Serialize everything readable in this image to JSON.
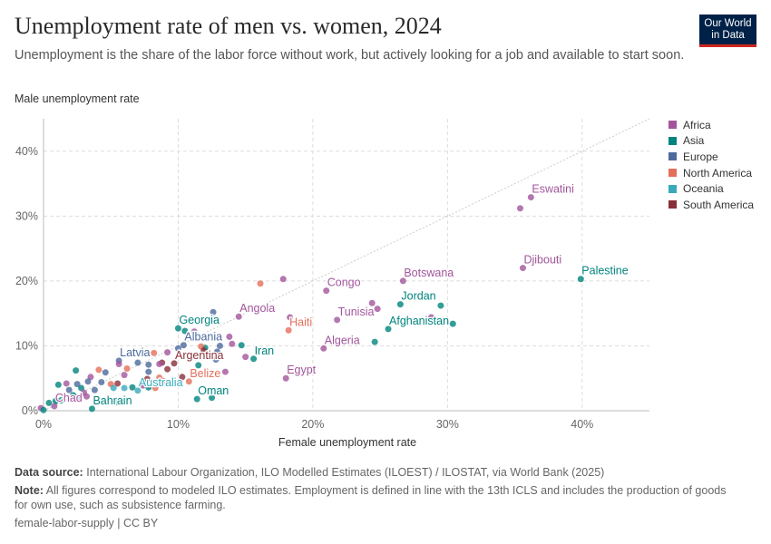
{
  "header": {
    "title": "Unemployment rate of men vs. women, 2024",
    "subtitle": "Unemployment is the share of the labor force without work, but actively looking for a job and available to start soon.",
    "logo": "Our World in Data"
  },
  "footer": {
    "source_label": "Data source:",
    "source": "International Labour Organization, ILO Modelled Estimates (ILOEST) / ILOSTAT, via World Bank (2025)",
    "note_label": "Note:",
    "note": "All figures correspond to modeled ILO estimates. Employment is defined in line with the 13th ICLS and includes the production of goods for own use, such as subsistence farming.",
    "license": "female-labor-supply | CC BY"
  },
  "colors": {
    "Africa": "#a2559c",
    "Asia": "#00847e",
    "Europe": "#4c6a9c",
    "North America": "#e56e5a",
    "Oceania": "#38aaba",
    "South America": "#883039"
  },
  "chart_data": {
    "type": "scatter",
    "xlabel": "Female unemployment rate",
    "ylabel": "Male unemployment rate",
    "xlim": [
      0,
      45
    ],
    "ylim": [
      0,
      45
    ],
    "xticks": [
      "0%",
      "10%",
      "20%",
      "30%",
      "40%"
    ],
    "yticks": [
      "0%",
      "10%",
      "20%",
      "30%",
      "40%"
    ],
    "grid": true,
    "reference_line": "y = x",
    "legend": {
      "position": "right",
      "entries": [
        "Africa",
        "Asia",
        "Europe",
        "North America",
        "Oceania",
        "South America"
      ]
    },
    "points": [
      {
        "entity": "Eswatini",
        "region": "Africa",
        "x": 36.2,
        "y": 32.9
      },
      {
        "region": "Africa",
        "x": 35.4,
        "y": 31.2
      },
      {
        "entity": "Djibouti",
        "region": "Africa",
        "x": 35.6,
        "y": 22.0
      },
      {
        "entity": "Palestine",
        "region": "Asia",
        "x": 39.9,
        "y": 20.3
      },
      {
        "entity": "Botswana",
        "region": "Africa",
        "x": 26.7,
        "y": 20.0
      },
      {
        "entity": "Congo",
        "region": "Africa",
        "x": 21.0,
        "y": 18.5
      },
      {
        "entity": "Jordan",
        "region": "Asia",
        "x": 26.5,
        "y": 16.4
      },
      {
        "region": "Asia",
        "x": 29.5,
        "y": 16.2
      },
      {
        "entity": "Tunisia",
        "region": "Africa",
        "x": 21.8,
        "y": 14.0
      },
      {
        "region": "Africa",
        "x": 24.4,
        "y": 16.6
      },
      {
        "region": "Africa",
        "x": 24.8,
        "y": 15.7
      },
      {
        "region": "Africa",
        "x": 28.8,
        "y": 14.4
      },
      {
        "entity": "Afghanistan",
        "region": "Asia",
        "x": 25.6,
        "y": 12.6
      },
      {
        "region": "Asia",
        "x": 30.4,
        "y": 13.4
      },
      {
        "entity": "Algeria",
        "region": "Africa",
        "x": 20.8,
        "y": 9.6
      },
      {
        "region": "Asia",
        "x": 24.6,
        "y": 10.6
      },
      {
        "entity": "Haiti",
        "region": "North America",
        "x": 18.2,
        "y": 12.4
      },
      {
        "region": "Africa",
        "x": 18.3,
        "y": 14.4
      },
      {
        "entity": "Egypt",
        "region": "Africa",
        "x": 18.0,
        "y": 5.0
      },
      {
        "entity": "Angola",
        "region": "Africa",
        "x": 14.5,
        "y": 14.5
      },
      {
        "region": "North America",
        "x": 16.1,
        "y": 19.6
      },
      {
        "region": "Africa",
        "x": 17.8,
        "y": 20.3
      },
      {
        "entity": "Iran",
        "region": "Asia",
        "x": 15.6,
        "y": 8.0
      },
      {
        "region": "Asia",
        "x": 14.7,
        "y": 10.1
      },
      {
        "region": "Africa",
        "x": 15.0,
        "y": 8.3
      },
      {
        "region": "Africa",
        "x": 13.8,
        "y": 11.4
      },
      {
        "region": "Africa",
        "x": 14.0,
        "y": 10.3
      },
      {
        "region": "Africa",
        "x": 13.5,
        "y": 6.0
      },
      {
        "entity": "Oman",
        "region": "Asia",
        "x": 11.4,
        "y": 1.8
      },
      {
        "region": "Asia",
        "x": 12.5,
        "y": 2.0
      },
      {
        "entity": "Belize",
        "region": "North America",
        "x": 10.8,
        "y": 4.5
      },
      {
        "region": "South America",
        "x": 10.3,
        "y": 5.2
      },
      {
        "entity": "Georgia",
        "region": "Asia",
        "x": 10.0,
        "y": 12.7
      },
      {
        "region": "Asia",
        "x": 10.5,
        "y": 12.3
      },
      {
        "region": "Europe",
        "x": 12.6,
        "y": 15.2
      },
      {
        "region": "Africa",
        "x": 11.2,
        "y": 12.2
      },
      {
        "entity": "Albania",
        "region": "Europe",
        "x": 10.4,
        "y": 10.1
      },
      {
        "region": "Europe",
        "x": 10.0,
        "y": 9.6
      },
      {
        "region": "Europe",
        "x": 12.9,
        "y": 9.1
      },
      {
        "region": "Europe",
        "x": 12.8,
        "y": 7.9
      },
      {
        "region": "Europe",
        "x": 13.1,
        "y": 10.0
      },
      {
        "region": "Asia",
        "x": 12.0,
        "y": 9.7
      },
      {
        "region": "Asia",
        "x": 11.5,
        "y": 7.0
      },
      {
        "region": "North America",
        "x": 11.7,
        "y": 9.9
      },
      {
        "region": "South America",
        "x": 11.9,
        "y": 9.3
      },
      {
        "entity": "Latvia",
        "region": "Europe",
        "x": 5.6,
        "y": 7.7
      },
      {
        "region": "Europe",
        "x": 7.0,
        "y": 7.4
      },
      {
        "region": "Europe",
        "x": 7.8,
        "y": 7.1
      },
      {
        "region": "Europe",
        "x": 7.8,
        "y": 6.0
      },
      {
        "region": "North America",
        "x": 8.2,
        "y": 8.9
      },
      {
        "region": "Africa",
        "x": 9.2,
        "y": 9.0
      },
      {
        "entity": "Argentina",
        "region": "South America",
        "x": 9.7,
        "y": 7.3
      },
      {
        "region": "South America",
        "x": 8.8,
        "y": 7.4
      },
      {
        "region": "South America",
        "x": 9.2,
        "y": 6.4
      },
      {
        "region": "Africa",
        "x": 8.6,
        "y": 7.2
      },
      {
        "region": "North America",
        "x": 8.6,
        "y": 5.1
      },
      {
        "region": "North America",
        "x": 8.9,
        "y": 4.6
      },
      {
        "region": "North America",
        "x": 8.3,
        "y": 3.5
      },
      {
        "region": "Asia",
        "x": 7.8,
        "y": 3.6
      },
      {
        "region": "South America",
        "x": 7.7,
        "y": 4.9
      },
      {
        "entity": "Australia",
        "region": "Oceania",
        "x": 7.0,
        "y": 3.1
      },
      {
        "region": "Oceania",
        "x": 6.0,
        "y": 3.5
      },
      {
        "region": "Asia",
        "x": 6.6,
        "y": 3.6
      },
      {
        "region": "Africa",
        "x": 7.4,
        "y": 3.9
      },
      {
        "region": "Africa",
        "x": 5.6,
        "y": 7.2
      },
      {
        "region": "North America",
        "x": 6.2,
        "y": 6.5
      },
      {
        "region": "Africa",
        "x": 6.0,
        "y": 5.5
      },
      {
        "region": "South America",
        "x": 5.5,
        "y": 4.2
      },
      {
        "region": "North America",
        "x": 5.0,
        "y": 4.1
      },
      {
        "region": "Europe",
        "x": 4.6,
        "y": 5.9
      },
      {
        "region": "North America",
        "x": 4.1,
        "y": 6.3
      },
      {
        "region": "Africa",
        "x": 3.5,
        "y": 5.2
      },
      {
        "region": "Europe",
        "x": 3.3,
        "y": 4.5
      },
      {
        "region": "Oceania",
        "x": 5.2,
        "y": 3.5
      },
      {
        "region": "Europe",
        "x": 4.3,
        "y": 4.4
      },
      {
        "region": "Asia",
        "x": 2.4,
        "y": 6.2
      },
      {
        "region": "Europe",
        "x": 2.5,
        "y": 4.1
      },
      {
        "region": "Asia",
        "x": 1.1,
        "y": 4.0
      },
      {
        "region": "Africa",
        "x": 1.7,
        "y": 4.2
      },
      {
        "region": "Europe",
        "x": 1.9,
        "y": 3.2
      },
      {
        "region": "Asia",
        "x": 2.8,
        "y": 3.5
      },
      {
        "region": "Africa",
        "x": 3.0,
        "y": 2.8
      },
      {
        "region": "Asia",
        "x": 2.2,
        "y": 2.4
      },
      {
        "region": "Oceania",
        "x": 2.5,
        "y": 2.0
      },
      {
        "region": "Africa",
        "x": 3.2,
        "y": 2.2
      },
      {
        "region": "Europe",
        "x": 3.8,
        "y": 3.2
      },
      {
        "region": "Asia",
        "x": 1.3,
        "y": 1.6
      },
      {
        "entity": "Chad",
        "region": "Africa",
        "x": 0.8,
        "y": 0.7
      },
      {
        "region": "Asia",
        "x": 0.9,
        "y": 1.5
      },
      {
        "region": "Asia",
        "x": 0.4,
        "y": 1.2
      },
      {
        "region": "Africa",
        "x": -0.2,
        "y": 0.4
      },
      {
        "region": "Asia",
        "x": 0.0,
        "y": 0.1
      },
      {
        "entity": "Bahrain",
        "region": "Asia",
        "x": 3.6,
        "y": 0.3
      },
      {
        "region": "Oceania",
        "x": 5.4,
        "y": 1.3
      }
    ]
  }
}
